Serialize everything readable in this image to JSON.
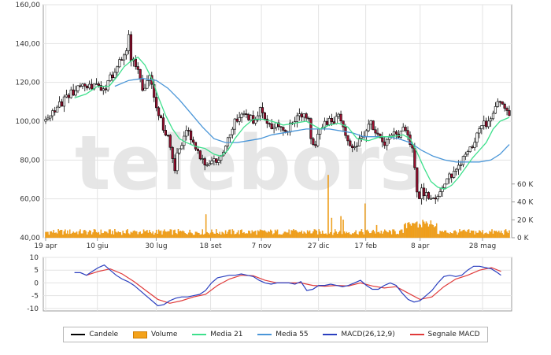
{
  "chart_data": [
    {
      "type": "candlestick",
      "title": "",
      "price_axis": {
        "ticks": [
          "40,00",
          "60,00",
          "80,00",
          "100,00",
          "120,00",
          "140,00",
          "160,00"
        ],
        "ylim": [
          40,
          160
        ]
      },
      "volume_axis": {
        "ticks": [
          "0 K",
          "20 K",
          "40 K",
          "60 K"
        ],
        "ylim": [
          0,
          80000
        ]
      },
      "x_ticks": [
        "19 apr",
        "10 giu",
        "30 lug",
        "18 set",
        "7 nov",
        "27 dic",
        "17 feb",
        "8 apr",
        "28 mag"
      ],
      "watermark": "telebors",
      "close_path": [
        [
          0,
          100
        ],
        [
          5,
          104
        ],
        [
          10,
          107
        ],
        [
          15,
          110
        ],
        [
          20,
          113
        ],
        [
          25,
          116
        ],
        [
          30,
          119
        ],
        [
          35,
          116
        ],
        [
          40,
          118
        ],
        [
          45,
          120
        ],
        [
          50,
          115
        ],
        [
          55,
          121
        ],
        [
          58,
          124
        ],
        [
          62,
          128
        ],
        [
          66,
          132
        ],
        [
          70,
          138
        ],
        [
          72,
          145
        ],
        [
          74,
          130
        ],
        [
          76,
          131
        ],
        [
          80,
          125
        ],
        [
          85,
          115
        ],
        [
          88,
          120
        ],
        [
          90,
          125
        ],
        [
          93,
          118
        ],
        [
          95,
          110
        ],
        [
          98,
          103
        ],
        [
          102,
          97
        ],
        [
          105,
          93
        ],
        [
          108,
          87
        ],
        [
          110,
          80
        ],
        [
          112,
          76
        ],
        [
          114,
          82
        ],
        [
          118,
          88
        ],
        [
          122,
          95
        ],
        [
          126,
          92
        ],
        [
          130,
          87
        ],
        [
          135,
          80
        ],
        [
          140,
          78
        ],
        [
          145,
          80
        ],
        [
          148,
          79
        ],
        [
          152,
          83
        ],
        [
          156,
          88
        ],
        [
          160,
          95
        ],
        [
          164,
          100
        ],
        [
          168,
          103
        ],
        [
          172,
          104
        ],
        [
          176,
          102
        ],
        [
          180,
          100
        ],
        [
          184,
          104
        ],
        [
          186,
          106
        ],
        [
          190,
          100
        ],
        [
          194,
          97
        ],
        [
          198,
          98
        ],
        [
          202,
          99
        ],
        [
          206,
          97
        ],
        [
          210,
          96
        ],
        [
          214,
          99
        ],
        [
          218,
          102
        ],
        [
          222,
          103
        ],
        [
          226,
          101
        ],
        [
          228,
          103
        ],
        [
          230,
          92
        ],
        [
          232,
          87
        ],
        [
          235,
          90
        ],
        [
          238,
          95
        ],
        [
          242,
          99
        ],
        [
          246,
          101
        ],
        [
          250,
          100
        ],
        [
          254,
          103
        ],
        [
          258,
          99
        ],
        [
          262,
          90
        ],
        [
          266,
          86
        ],
        [
          270,
          88
        ],
        [
          274,
          92
        ],
        [
          278,
          95
        ],
        [
          282,
          99
        ],
        [
          286,
          95
        ],
        [
          290,
          90
        ],
        [
          294,
          88
        ],
        [
          298,
          92
        ],
        [
          302,
          95
        ],
        [
          306,
          93
        ],
        [
          310,
          97
        ],
        [
          314,
          94
        ],
        [
          318,
          85
        ],
        [
          321,
          70
        ],
        [
          323,
          60
        ],
        [
          326,
          64
        ],
        [
          330,
          62
        ],
        [
          335,
          60
        ],
        [
          340,
          63
        ],
        [
          345,
          67
        ],
        [
          350,
          71
        ],
        [
          355,
          75
        ],
        [
          360,
          79
        ],
        [
          364,
          83
        ],
        [
          368,
          86
        ],
        [
          372,
          90
        ],
        [
          376,
          95
        ],
        [
          380,
          99
        ],
        [
          383,
          97
        ],
        [
          386,
          103
        ],
        [
          390,
          107
        ],
        [
          393,
          111
        ],
        [
          396,
          108
        ],
        [
          399,
          105
        ],
        [
          402,
          103
        ]
      ],
      "ma21_path": [
        [
          25,
          112
        ],
        [
          35,
          114
        ],
        [
          45,
          118
        ],
        [
          55,
          118
        ],
        [
          62,
          123
        ],
        [
          68,
          128
        ],
        [
          74,
          131
        ],
        [
          80,
          133
        ],
        [
          86,
          129
        ],
        [
          92,
          122
        ],
        [
          98,
          112
        ],
        [
          104,
          103
        ],
        [
          110,
          96
        ],
        [
          116,
          91
        ],
        [
          122,
          89
        ],
        [
          130,
          87
        ],
        [
          138,
          86
        ],
        [
          146,
          83
        ],
        [
          152,
          82
        ],
        [
          158,
          85
        ],
        [
          164,
          91
        ],
        [
          172,
          97
        ],
        [
          180,
          101
        ],
        [
          188,
          101
        ],
        [
          196,
          100
        ],
        [
          206,
          98
        ],
        [
          216,
          99
        ],
        [
          226,
          100
        ],
        [
          232,
          98
        ],
        [
          238,
          96
        ],
        [
          246,
          98
        ],
        [
          254,
          99
        ],
        [
          262,
          97
        ],
        [
          270,
          91
        ],
        [
          280,
          90
        ],
        [
          290,
          92
        ],
        [
          300,
          92
        ],
        [
          310,
          93
        ],
        [
          316,
          91
        ],
        [
          322,
          84
        ],
        [
          328,
          76
        ],
        [
          334,
          69
        ],
        [
          340,
          66
        ],
        [
          346,
          65
        ],
        [
          352,
          67
        ],
        [
          358,
          71
        ],
        [
          364,
          76
        ],
        [
          370,
          81
        ],
        [
          376,
          85
        ],
        [
          382,
          89
        ],
        [
          388,
          96
        ],
        [
          394,
          100
        ],
        [
          402,
          102
        ]
      ],
      "ma55_path": [
        [
          60,
          118
        ],
        [
          72,
          121
        ],
        [
          84,
          122
        ],
        [
          96,
          121
        ],
        [
          106,
          117
        ],
        [
          116,
          111
        ],
        [
          126,
          104
        ],
        [
          136,
          97
        ],
        [
          146,
          91
        ],
        [
          156,
          89
        ],
        [
          166,
          89
        ],
        [
          176,
          90
        ],
        [
          186,
          91
        ],
        [
          196,
          93
        ],
        [
          206,
          94
        ],
        [
          216,
          95
        ],
        [
          226,
          96
        ],
        [
          236,
          96
        ],
        [
          246,
          96
        ],
        [
          256,
          95
        ],
        [
          266,
          94
        ],
        [
          276,
          92
        ],
        [
          286,
          92
        ],
        [
          296,
          92
        ],
        [
          306,
          91
        ],
        [
          316,
          89
        ],
        [
          326,
          85
        ],
        [
          336,
          82
        ],
        [
          346,
          80
        ],
        [
          356,
          79
        ],
        [
          366,
          79
        ],
        [
          376,
          79
        ],
        [
          386,
          80
        ],
        [
          394,
          83
        ],
        [
          402,
          88
        ]
      ],
      "volume_spikes": [
        [
          139,
          26000
        ],
        [
          245,
          70000
        ],
        [
          248,
          22000
        ],
        [
          256,
          24000
        ],
        [
          258,
          20000
        ],
        [
          277,
          38000
        ],
        [
          287,
          14000
        ],
        [
          330,
          18000
        ],
        [
          336,
          14000
        ]
      ],
      "price_labels": [],
      "series": [
        {
          "name": "Candele",
          "color": "#000000"
        },
        {
          "name": "Volume",
          "color": "#f4a21a"
        },
        {
          "name": "Media 21",
          "color": "#3ee08c"
        },
        {
          "name": "Media 55",
          "color": "#4a96d8"
        }
      ]
    },
    {
      "type": "line",
      "title": "",
      "y_ticks": [
        "-10",
        "-5",
        "0",
        "5",
        "10"
      ],
      "ylim": [
        -11,
        10
      ],
      "macd_path": [
        [
          0,
          4
        ],
        [
          5,
          4
        ],
        [
          10,
          3
        ],
        [
          15,
          4.5
        ],
        [
          20,
          6
        ],
        [
          25,
          7
        ],
        [
          30,
          5
        ],
        [
          35,
          3
        ],
        [
          40,
          1.5
        ],
        [
          45,
          0.5
        ],
        [
          50,
          -1
        ],
        [
          55,
          -3
        ],
        [
          60,
          -5
        ],
        [
          65,
          -7
        ],
        [
          70,
          -9
        ],
        [
          75,
          -8.5
        ],
        [
          80,
          -7
        ],
        [
          85,
          -6
        ],
        [
          90,
          -5.5
        ],
        [
          95,
          -5.5
        ],
        [
          100,
          -5
        ],
        [
          105,
          -4.5
        ],
        [
          110,
          -3
        ],
        [
          115,
          0
        ],
        [
          120,
          2
        ],
        [
          125,
          2.5
        ],
        [
          130,
          3
        ],
        [
          135,
          3
        ],
        [
          140,
          3.5
        ],
        [
          145,
          3
        ],
        [
          150,
          2.5
        ],
        [
          155,
          1
        ],
        [
          160,
          0
        ],
        [
          165,
          -0.5
        ],
        [
          170,
          0
        ],
        [
          175,
          0
        ],
        [
          180,
          0
        ],
        [
          185,
          -0.5
        ],
        [
          190,
          0.5
        ],
        [
          195,
          -3
        ],
        [
          200,
          -2.5
        ],
        [
          205,
          -1
        ],
        [
          210,
          -1
        ],
        [
          215,
          -0.5
        ],
        [
          220,
          -1
        ],
        [
          225,
          -1.5
        ],
        [
          230,
          -1
        ],
        [
          235,
          0
        ],
        [
          240,
          1
        ],
        [
          245,
          -1
        ],
        [
          250,
          -2.5
        ],
        [
          255,
          -2.5
        ],
        [
          260,
          -1
        ],
        [
          265,
          0
        ],
        [
          270,
          -1
        ],
        [
          275,
          -4
        ],
        [
          280,
          -6.5
        ],
        [
          285,
          -7.5
        ],
        [
          290,
          -7
        ],
        [
          295,
          -5
        ],
        [
          300,
          -3
        ],
        [
          305,
          0
        ],
        [
          310,
          2.5
        ],
        [
          315,
          3
        ],
        [
          320,
          2.5
        ],
        [
          325,
          3
        ],
        [
          330,
          5
        ],
        [
          335,
          6.5
        ],
        [
          340,
          6.5
        ],
        [
          345,
          6
        ],
        [
          350,
          5.5
        ],
        [
          355,
          4
        ],
        [
          358,
          3
        ]
      ],
      "signal_path": [
        [
          10,
          3
        ],
        [
          20,
          4.5
        ],
        [
          30,
          5.5
        ],
        [
          40,
          3.5
        ],
        [
          50,
          0.5
        ],
        [
          60,
          -3
        ],
        [
          70,
          -6.5
        ],
        [
          80,
          -8
        ],
        [
          90,
          -7
        ],
        [
          100,
          -5.5
        ],
        [
          110,
          -4.5
        ],
        [
          120,
          -1
        ],
        [
          130,
          1.5
        ],
        [
          140,
          3
        ],
        [
          150,
          2.8
        ],
        [
          160,
          1
        ],
        [
          170,
          0
        ],
        [
          180,
          0
        ],
        [
          190,
          0
        ],
        [
          200,
          -1
        ],
        [
          210,
          -1.3
        ],
        [
          220,
          -1
        ],
        [
          230,
          -1.2
        ],
        [
          240,
          0
        ],
        [
          250,
          -1.2
        ],
        [
          260,
          -2
        ],
        [
          270,
          -1.5
        ],
        [
          280,
          -4
        ],
        [
          290,
          -6.5
        ],
        [
          300,
          -5.5
        ],
        [
          310,
          -1.5
        ],
        [
          320,
          1.5
        ],
        [
          330,
          3
        ],
        [
          340,
          5
        ],
        [
          350,
          6
        ],
        [
          358,
          4.5
        ]
      ],
      "series": [
        {
          "name": "MACD(26,12,9)",
          "color": "#2a3fbf"
        },
        {
          "name": "Segnale MACD",
          "color": "#e03a3a"
        }
      ]
    }
  ],
  "legend": {
    "candles": "Candele",
    "volume": "Volume",
    "ma21": "Media 21",
    "ma55": "Media 55",
    "macd": "MACD(26,12,9)",
    "signal": "Segnale MACD"
  }
}
